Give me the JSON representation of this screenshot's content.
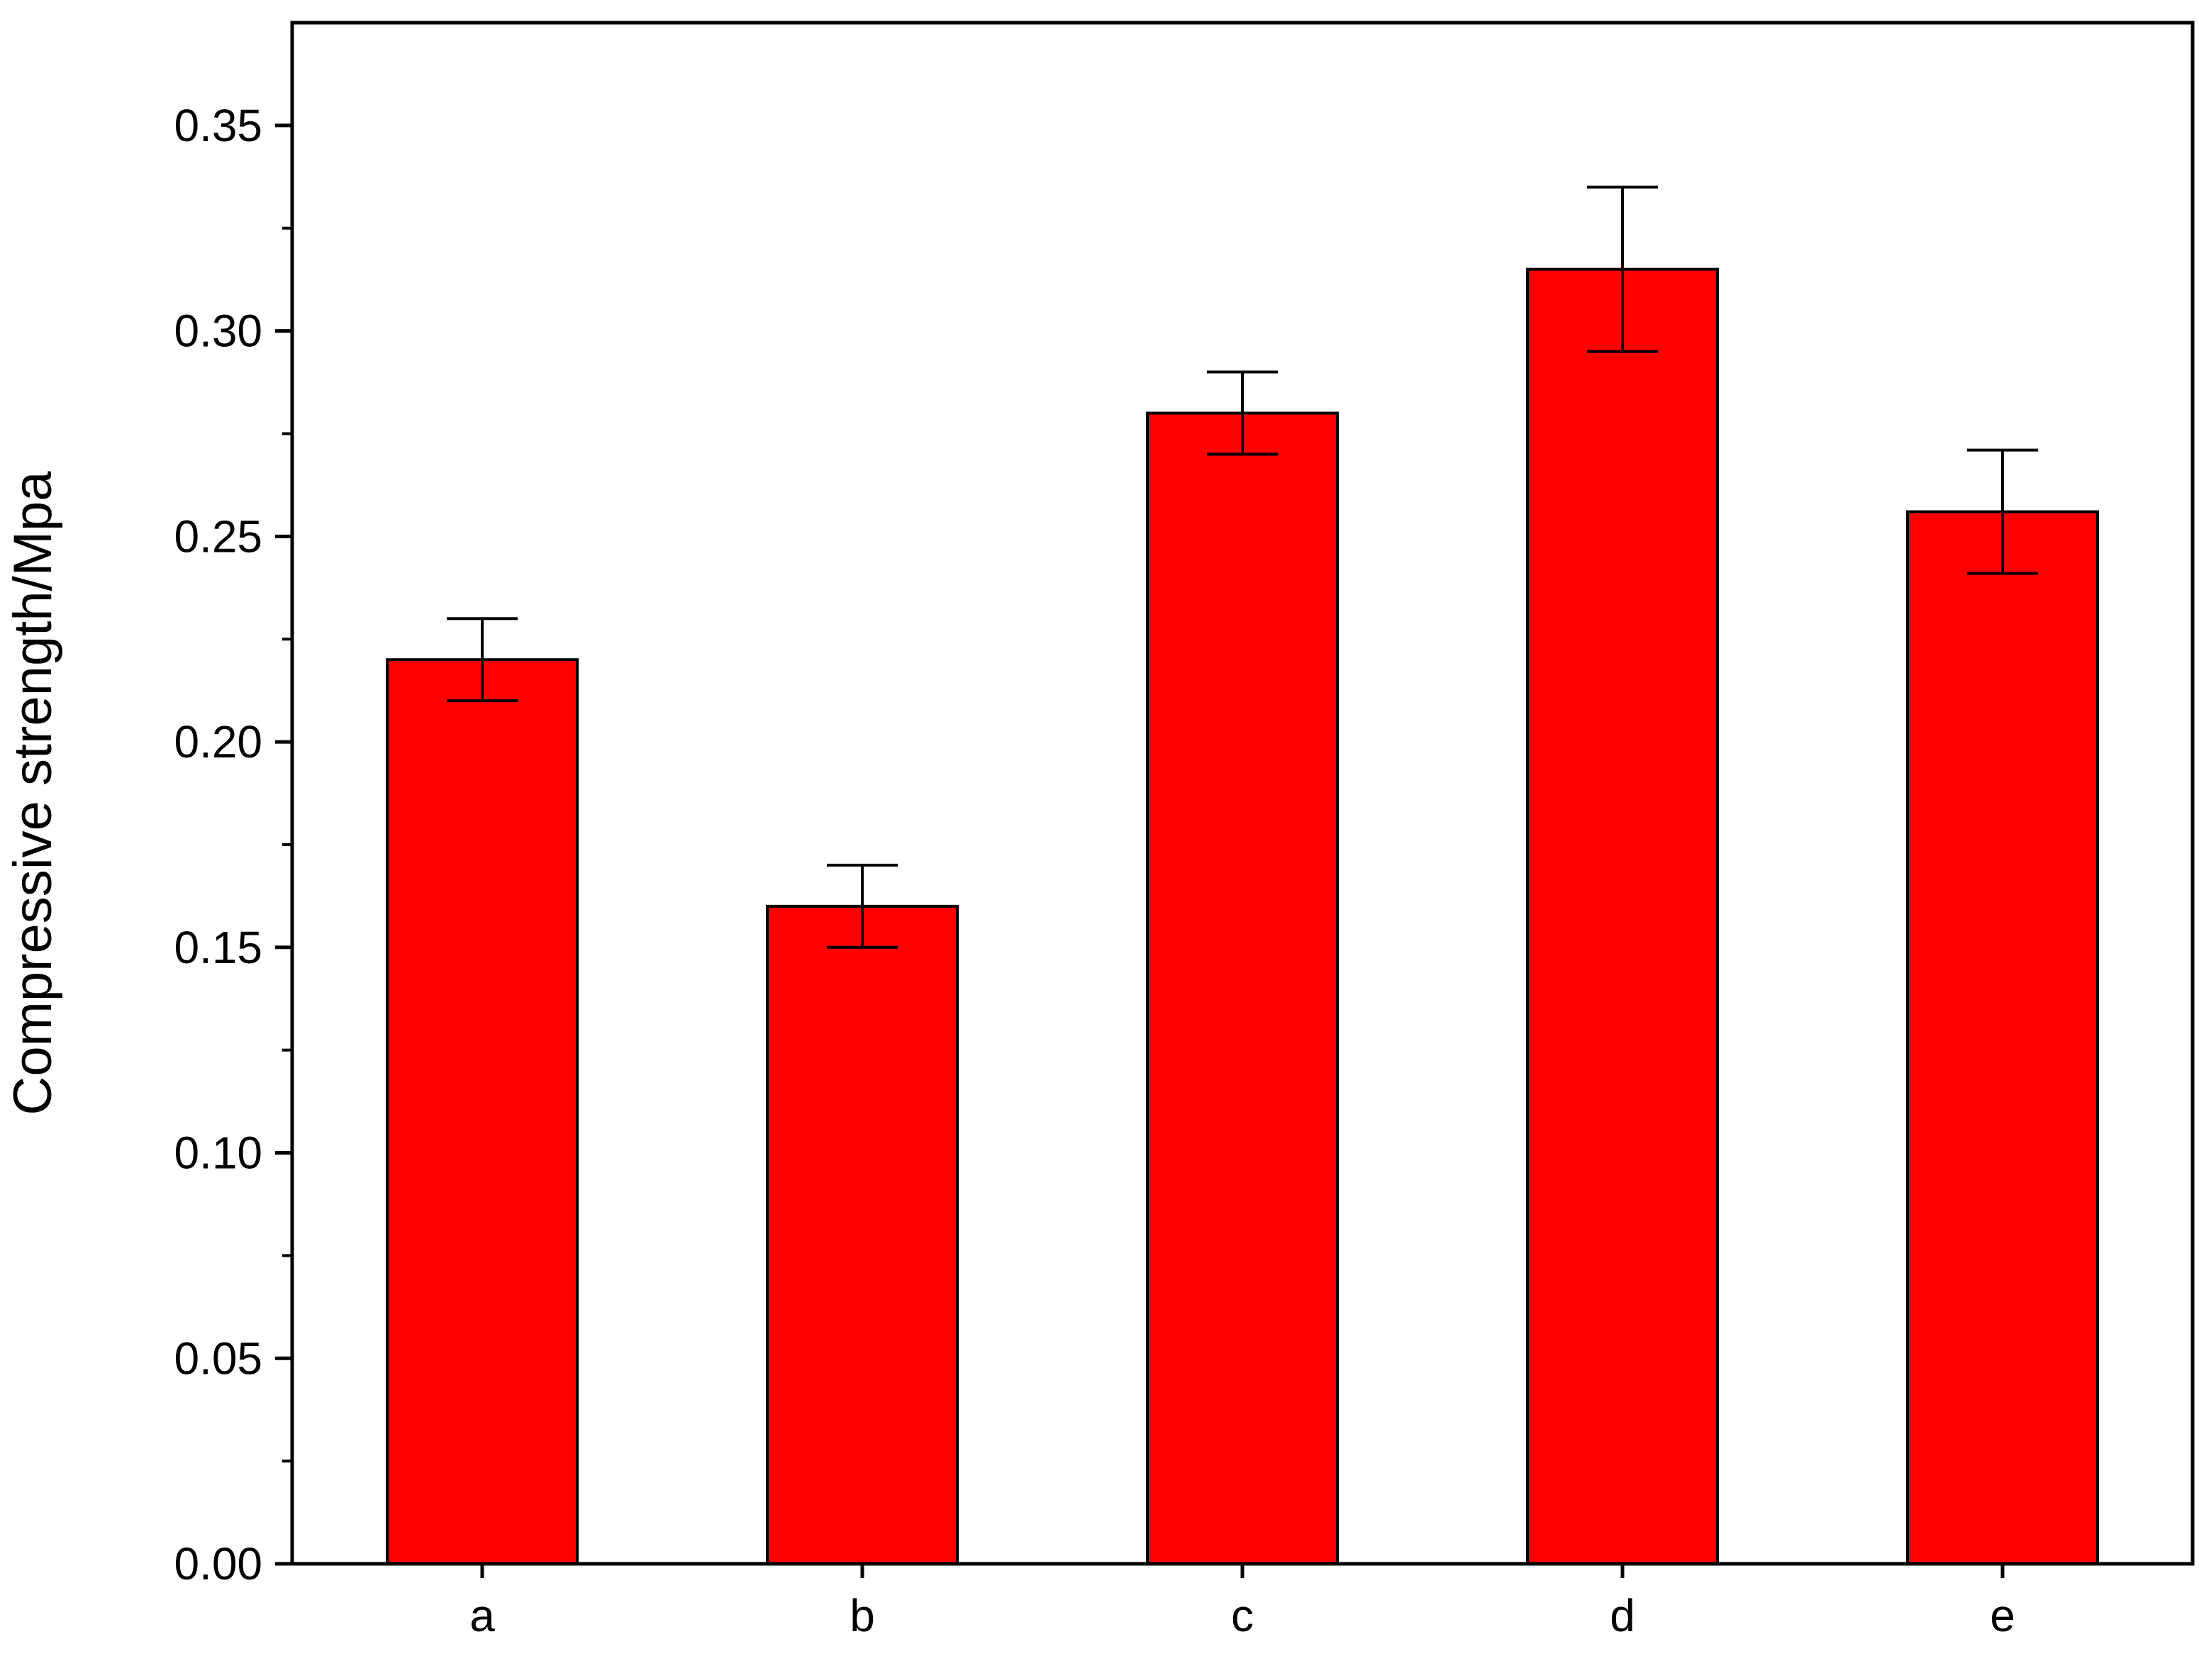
{
  "chart_data": {
    "type": "bar",
    "title": "",
    "xlabel": "",
    "ylabel": "Compressive strength/Mpa",
    "categories": [
      "a",
      "b",
      "c",
      "d",
      "e"
    ],
    "values": [
      0.22,
      0.16,
      0.28,
      0.315,
      0.256
    ],
    "error": [
      0.01,
      0.01,
      0.01,
      0.02,
      0.015
    ],
    "ylim": [
      0,
      0.375
    ],
    "yticks": [
      0.0,
      0.05,
      0.1,
      0.15,
      0.2,
      0.25,
      0.3,
      0.35
    ],
    "ytick_labels": [
      "0.00",
      "0.05",
      "0.10",
      "0.15",
      "0.20",
      "0.25",
      "0.30",
      "0.35"
    ],
    "bar_color": "#ff0000",
    "edge_color": "#000000",
    "grid": false,
    "legend": "none"
  }
}
